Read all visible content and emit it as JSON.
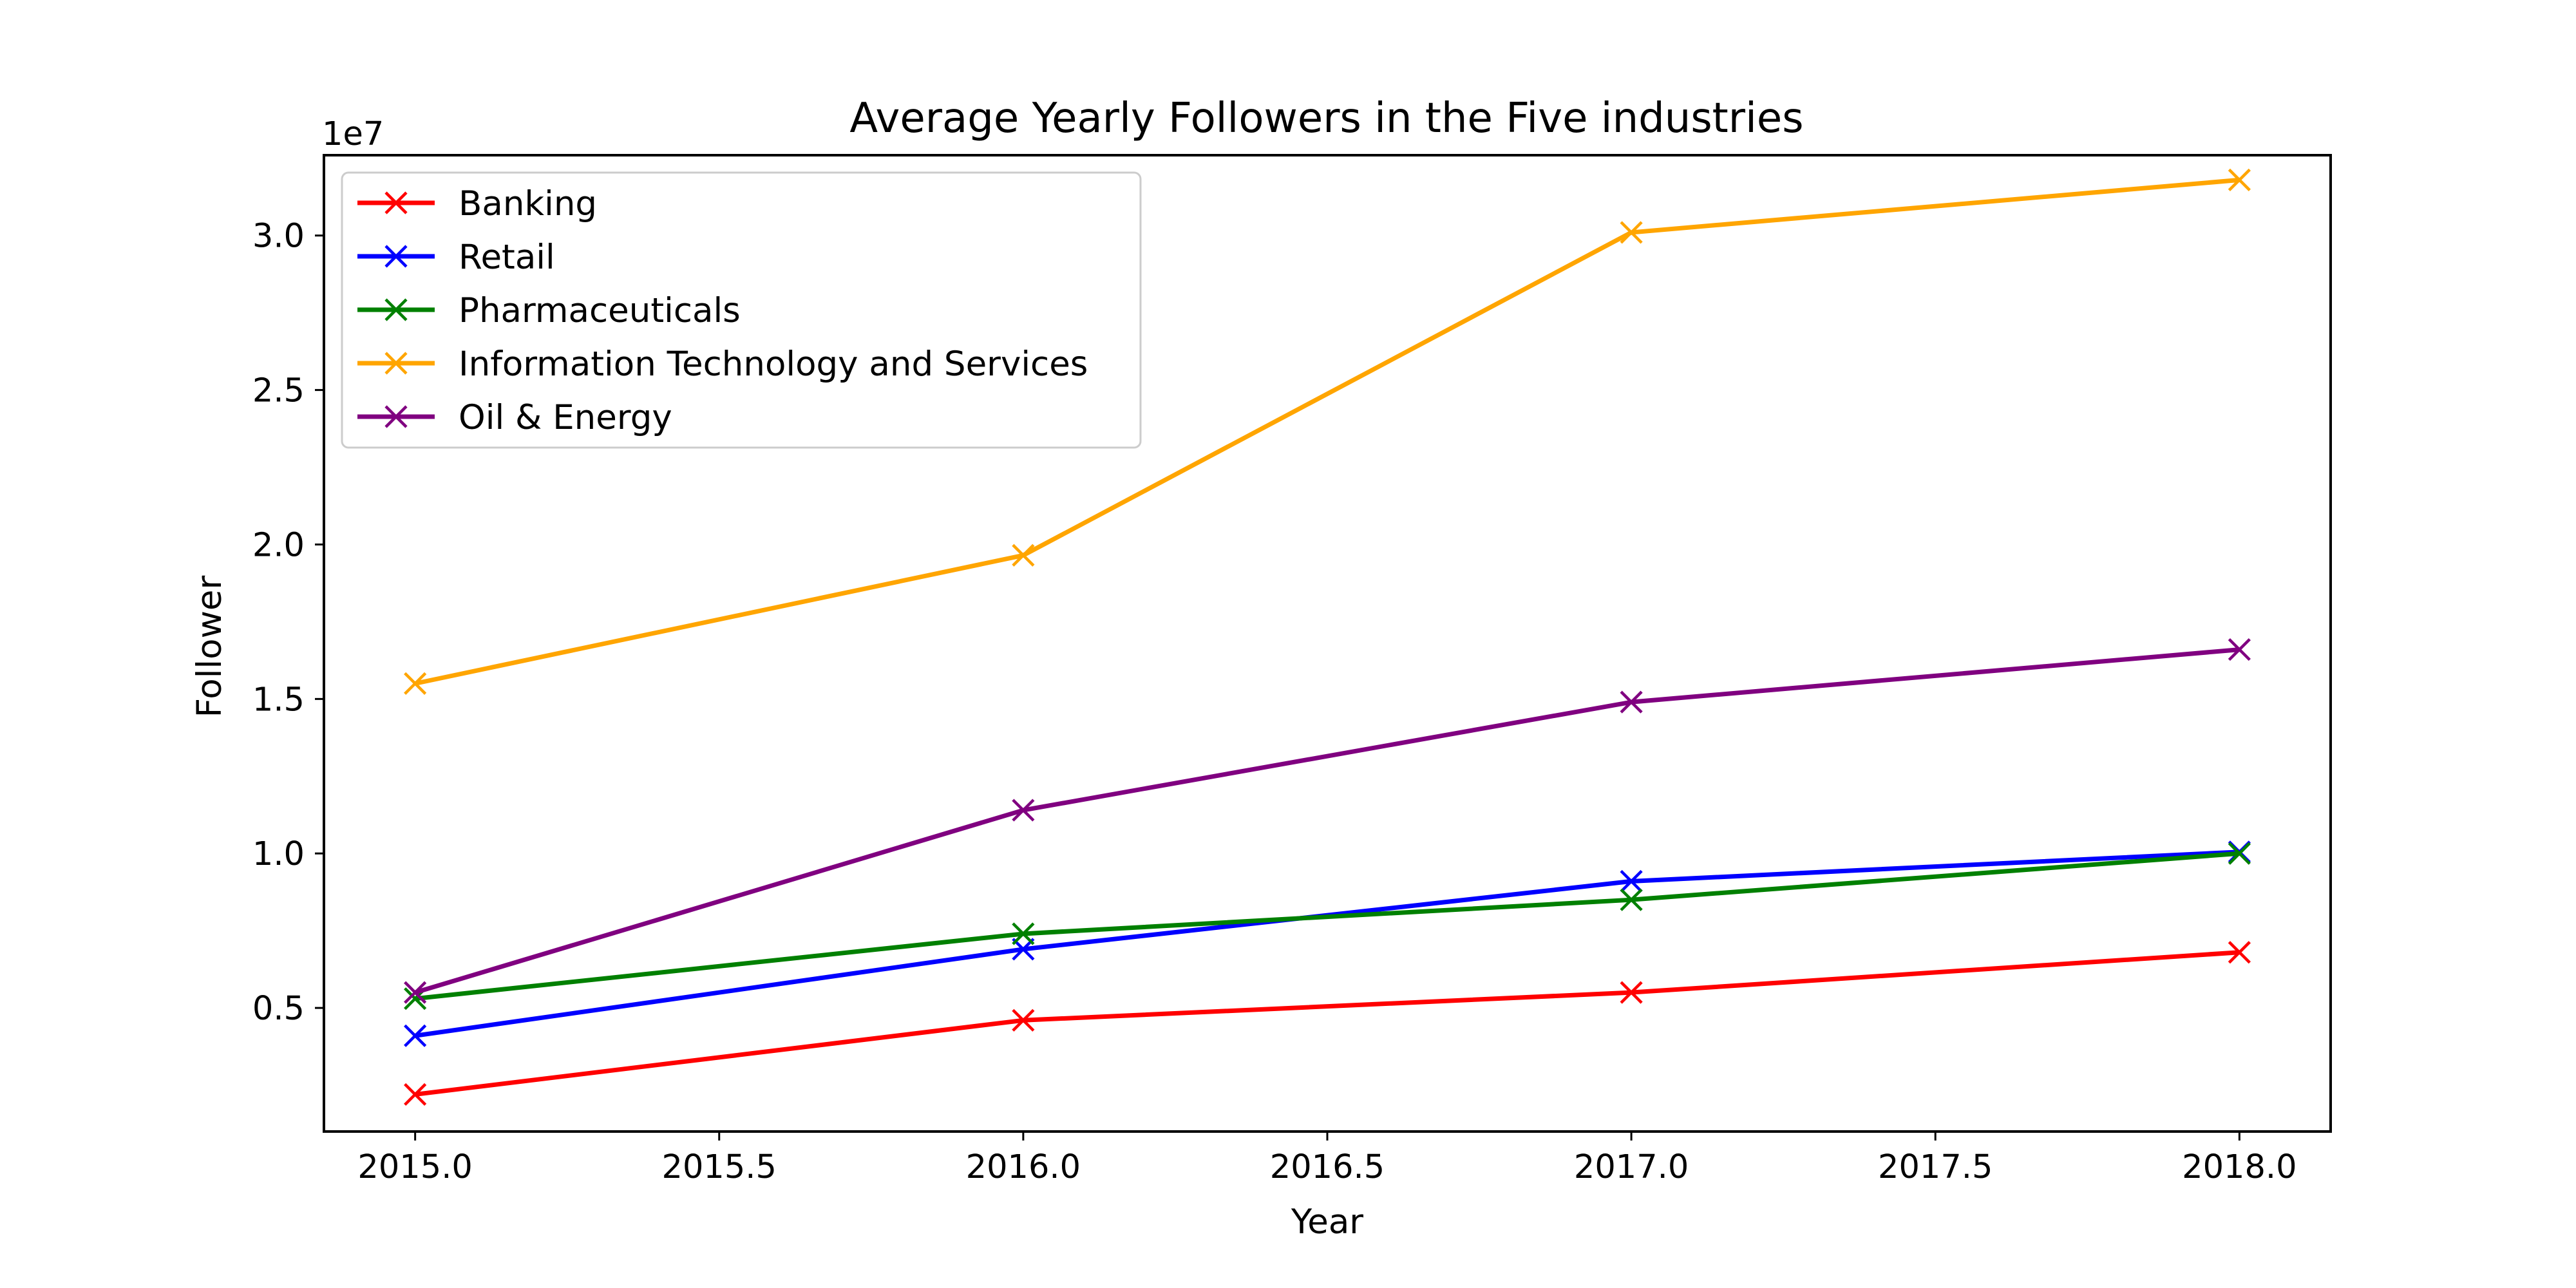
{
  "chart_data": {
    "type": "line",
    "title": "Average Yearly Followers in the Five industries",
    "xlabel": "Year",
    "ylabel": "Follower",
    "y_offset_label": "1e7",
    "x": [
      2015,
      2016,
      2017,
      2018
    ],
    "xlim": [
      2014.85,
      2018.15
    ],
    "ylim": [
      1000000,
      32600000
    ],
    "x_ticks": [
      2015.0,
      2015.5,
      2016.0,
      2016.5,
      2017.0,
      2017.5,
      2018.0
    ],
    "x_tick_labels": [
      "2015.0",
      "2015.5",
      "2016.0",
      "2016.5",
      "2017.0",
      "2017.5",
      "2018.0"
    ],
    "y_ticks": [
      5000000,
      10000000,
      15000000,
      20000000,
      25000000,
      30000000
    ],
    "y_tick_labels": [
      "0.5",
      "1.0",
      "1.5",
      "2.0",
      "2.5",
      "3.0"
    ],
    "grid": false,
    "legend_position": "top-left",
    "marker": "x",
    "series": [
      {
        "name": "Banking",
        "color": "#ff0000",
        "values": [
          2200000,
          4600000,
          5500000,
          6800000
        ]
      },
      {
        "name": "Retail",
        "color": "#0000ff",
        "values": [
          4100000,
          6900000,
          9100000,
          10050000
        ]
      },
      {
        "name": "Pharmaceuticals",
        "color": "#008000",
        "values": [
          5300000,
          7400000,
          8500000,
          10000000
        ]
      },
      {
        "name": "Information Technology and Services",
        "color": "#ffa500",
        "values": [
          15500000,
          19650000,
          30100000,
          31800000
        ]
      },
      {
        "name": "Oil & Energy",
        "color": "#800080",
        "values": [
          5500000,
          11400000,
          14900000,
          16600000
        ]
      }
    ]
  }
}
